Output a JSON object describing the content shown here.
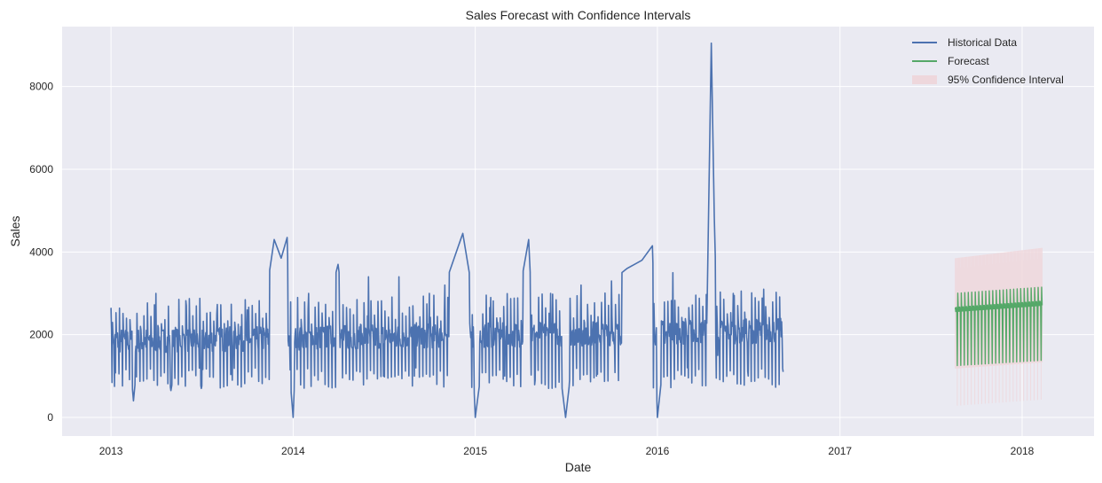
{
  "chart_data": {
    "type": "line",
    "title": "Sales Forecast with Confidence Intervals",
    "xlabel": "Date",
    "ylabel": "Sales",
    "x_type": "date",
    "xlim": [
      "2012-09-25",
      "2018-05-25"
    ],
    "ylim": [
      -450,
      9450
    ],
    "x_ticks": [
      "2013",
      "2014",
      "2015",
      "2016",
      "2017",
      "2018"
    ],
    "x_tick_dates": [
      "2013-01-01",
      "2014-01-01",
      "2015-01-01",
      "2016-01-01",
      "2017-01-01",
      "2018-01-01"
    ],
    "y_ticks": [
      0,
      2000,
      4000,
      6000,
      8000
    ],
    "grid": true,
    "legend_position": "top-right",
    "colors": {
      "background": "#eaeaf2",
      "grid": "#ffffff",
      "historical": "#4c72b0",
      "forecast": "#55a868",
      "confidence": "#eed7dc"
    },
    "series": [
      {
        "name": "Historical Data",
        "kind": "line",
        "color": "#4c72b0",
        "weekly_oscillation": true,
        "points": [
          [
            "2013-01-01",
            2650
          ],
          [
            "2013-01-08",
            750
          ],
          [
            "2013-02-01",
            2400
          ],
          [
            "2013-02-15",
            400
          ],
          [
            "2013-03-01",
            2200
          ],
          [
            "2013-04-01",
            3000
          ],
          [
            "2013-05-01",
            650
          ],
          [
            "2013-06-01",
            2700
          ],
          [
            "2013-07-01",
            700
          ],
          [
            "2013-08-01",
            2500
          ],
          [
            "2013-09-01",
            900
          ],
          [
            "2013-10-01",
            2600
          ],
          [
            "2013-11-01",
            2400
          ],
          [
            "2013-11-24",
            4300
          ],
          [
            "2013-12-08",
            3850
          ],
          [
            "2013-12-20",
            4350
          ],
          [
            "2013-12-28",
            600
          ],
          [
            "2014-01-01",
            0
          ],
          [
            "2014-01-10",
            2900
          ],
          [
            "2014-02-01",
            3000
          ],
          [
            "2014-03-01",
            2200
          ],
          [
            "2014-04-01",
            3700
          ],
          [
            "2014-05-01",
            900
          ],
          [
            "2014-06-01",
            3400
          ],
          [
            "2014-07-01",
            1000
          ],
          [
            "2014-08-01",
            3400
          ],
          [
            "2014-09-01",
            1000
          ],
          [
            "2014-10-01",
            3000
          ],
          [
            "2014-11-01",
            3200
          ],
          [
            "2014-12-07",
            4450
          ],
          [
            "2014-12-20",
            3500
          ],
          [
            "2015-01-01",
            0
          ],
          [
            "2015-02-01",
            2900
          ],
          [
            "2015-03-01",
            1000
          ],
          [
            "2015-04-18",
            4300
          ],
          [
            "2015-05-01",
            900
          ],
          [
            "2015-06-01",
            3000
          ],
          [
            "2015-07-01",
            0
          ],
          [
            "2015-08-01",
            3200
          ],
          [
            "2015-09-01",
            1000
          ],
          [
            "2015-10-01",
            3300
          ],
          [
            "2015-11-01",
            3600
          ],
          [
            "2015-12-01",
            3800
          ],
          [
            "2015-12-22",
            4150
          ],
          [
            "2016-01-01",
            0
          ],
          [
            "2016-02-01",
            3500
          ],
          [
            "2016-03-01",
            1200
          ],
          [
            "2016-04-10",
            3000
          ],
          [
            "2016-04-18",
            9050
          ],
          [
            "2016-04-24",
            4850
          ],
          [
            "2016-05-01",
            1500
          ],
          [
            "2016-06-01",
            3000
          ],
          [
            "2016-07-01",
            1000
          ],
          [
            "2016-08-01",
            3100
          ],
          [
            "2016-09-09",
            1100
          ]
        ]
      },
      {
        "name": "Forecast",
        "kind": "line",
        "color": "#55a868",
        "start": "2017-08-20",
        "end": "2018-02-10",
        "high_start": 3000,
        "high_end": 3150,
        "mid_start": 2600,
        "mid_end": 2750,
        "low_start": 1250,
        "low_end": 1380
      },
      {
        "name": "95% Confidence Interval",
        "kind": "band",
        "color": "#eed7dc",
        "start": "2017-08-20",
        "end": "2018-02-10",
        "upper_start": 3850,
        "upper_end": 4100,
        "lower_start": 280,
        "lower_end": 430
      }
    ]
  }
}
